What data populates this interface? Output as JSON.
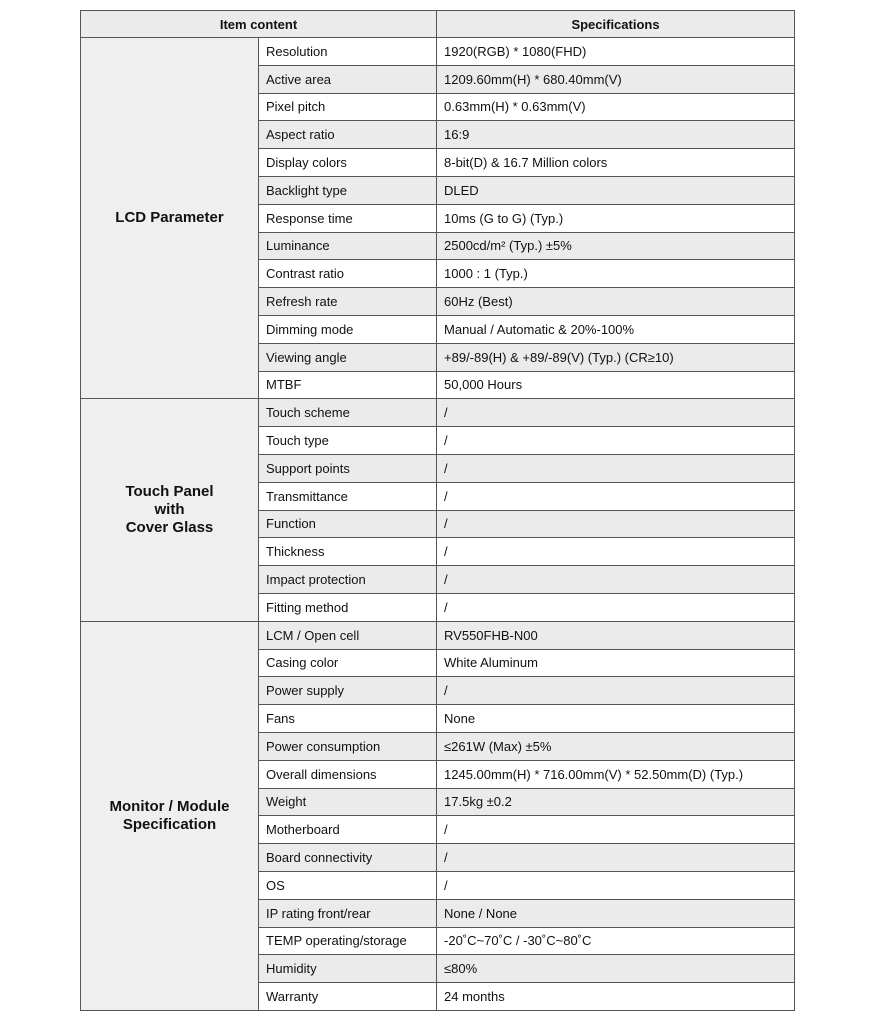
{
  "header": {
    "item_content": "Item content",
    "specifications": "Specifications"
  },
  "colors": {
    "row_shade": "#ebebeb",
    "border": "#555555"
  },
  "groups": [
    {
      "title": "LCD Parameter",
      "rows": [
        [
          "Resolution",
          "1920(RGB) * 1080(FHD)"
        ],
        [
          "Active area",
          "1209.60mm(H) * 680.40mm(V)"
        ],
        [
          "Pixel pitch",
          "0.63mm(H) * 0.63mm(V)"
        ],
        [
          "Aspect ratio",
          "16:9"
        ],
        [
          "Display colors",
          "8-bit(D) & 16.7 Million colors"
        ],
        [
          "Backlight type",
          "DLED"
        ],
        [
          "Response time",
          "10ms (G to G) (Typ.)"
        ],
        [
          "Luminance",
          "2500cd/m² (Typ.) ±5%"
        ],
        [
          "Contrast ratio",
          "1000 : 1 (Typ.)"
        ],
        [
          "Refresh rate",
          "60Hz (Best)"
        ],
        [
          "Dimming mode",
          "Manual / Automatic & 20%-100%"
        ],
        [
          "Viewing angle",
          "+89/-89(H) & +89/-89(V) (Typ.)  (CR≥10)"
        ],
        [
          "MTBF",
          "50,000 Hours"
        ]
      ]
    },
    {
      "title": "Touch Panel\nwith\nCover Glass",
      "rows": [
        [
          "Touch scheme",
          "/"
        ],
        [
          "Touch type",
          "/"
        ],
        [
          "Support points",
          "/"
        ],
        [
          "Transmittance",
          "/"
        ],
        [
          "Function",
          "/"
        ],
        [
          "Thickness",
          "/"
        ],
        [
          "Impact protection",
          "/"
        ],
        [
          "Fitting method",
          "/"
        ]
      ]
    },
    {
      "title": "Monitor / Module\nSpecification",
      "rows": [
        [
          "LCM / Open cell",
          "RV550FHB-N00"
        ],
        [
          "Casing color",
          "White Aluminum"
        ],
        [
          "Power supply",
          "/"
        ],
        [
          "Fans",
          "None"
        ],
        [
          "Power consumption",
          "≤261W (Max) ±5%"
        ],
        [
          "Overall dimensions",
          "1245.00mm(H) * 716.00mm(V) * 52.50mm(D) (Typ.)"
        ],
        [
          "Weight",
          "17.5kg ±0.2"
        ],
        [
          "Motherboard",
          "/"
        ],
        [
          "Board connectivity",
          "/"
        ],
        [
          "OS",
          "/"
        ],
        [
          "IP rating front/rear",
          "None / None"
        ],
        [
          "TEMP operating/storage",
          "-20˚C~70˚C / -30˚C~80˚C"
        ],
        [
          "Humidity",
          "≤80%"
        ],
        [
          "Warranty",
          "24 months"
        ]
      ]
    }
  ]
}
